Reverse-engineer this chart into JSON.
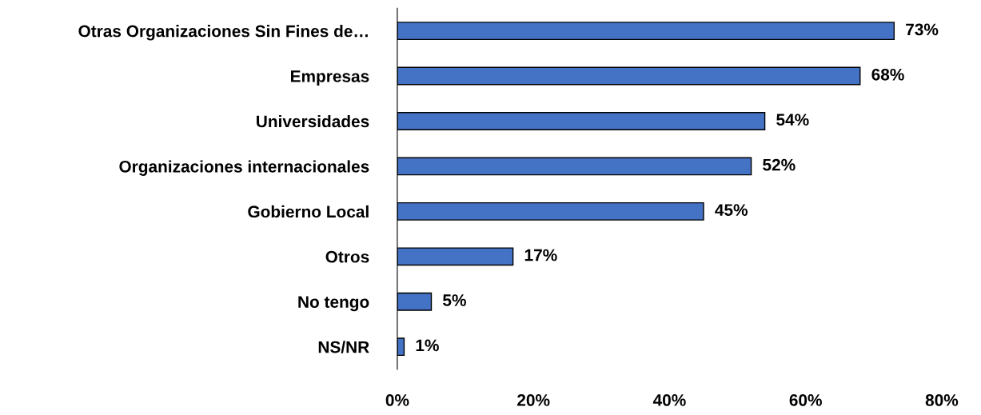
{
  "chart_data": {
    "type": "bar",
    "orientation": "horizontal",
    "categories": [
      "Otras Organizaciones Sin Fines de…",
      "Empresas",
      "Universidades",
      "Organizaciones internacionales",
      "Gobierno Local",
      "Otros",
      "No tengo",
      "NS/NR"
    ],
    "values": [
      73,
      68,
      54,
      52,
      45,
      17,
      5,
      1
    ],
    "value_labels": [
      "73%",
      "68%",
      "54%",
      "52%",
      "45%",
      "17%",
      "5%",
      "1%"
    ],
    "color": "#4472c4",
    "xlim": [
      0,
      80
    ],
    "xticks": [
      {
        "value": 0,
        "label": "0%"
      },
      {
        "value": 20,
        "label": "20%"
      },
      {
        "value": 40,
        "label": "40%"
      },
      {
        "value": 60,
        "label": "60%"
      },
      {
        "value": 80,
        "label": "80%"
      }
    ],
    "grid": false,
    "legend": false
  }
}
